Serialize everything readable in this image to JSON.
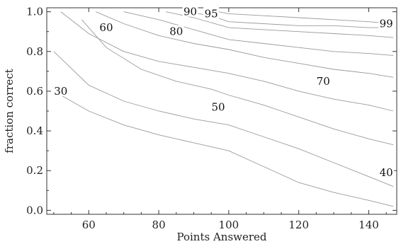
{
  "chart_data": {
    "type": "contour",
    "title": "",
    "xlabel": "Points Answered",
    "ylabel": "fraction correct",
    "xlim": [
      48,
      148
    ],
    "ylim": [
      -0.02,
      1.02
    ],
    "xticks": [
      60,
      80,
      100,
      120,
      140
    ],
    "yticks": [
      0.0,
      0.2,
      0.4,
      0.6,
      0.8,
      1.0
    ],
    "xtick_labels": [
      "60",
      "80",
      "100",
      "120",
      "140"
    ],
    "ytick_labels": [
      "0.0",
      "0.2",
      "0.4",
      "0.6",
      "0.8",
      "1.0"
    ],
    "grid": false,
    "contours": [
      {
        "level": "30",
        "points": [
          [
            50,
            0.6
          ],
          [
            60,
            0.5
          ],
          [
            70,
            0.43
          ],
          [
            80,
            0.38
          ],
          [
            90,
            0.34
          ],
          [
            100,
            0.3
          ],
          [
            110,
            0.22
          ],
          [
            120,
            0.14
          ],
          [
            130,
            0.09
          ],
          [
            140,
            0.05
          ],
          [
            147,
            0.02
          ]
        ]
      },
      {
        "level": "40",
        "points": [
          [
            50,
            0.8
          ],
          [
            60,
            0.63
          ],
          [
            70,
            0.55
          ],
          [
            80,
            0.5
          ],
          [
            90,
            0.46
          ],
          [
            100,
            0.43
          ],
          [
            110,
            0.37
          ],
          [
            120,
            0.31
          ],
          [
            130,
            0.24
          ],
          [
            140,
            0.17
          ],
          [
            147,
            0.12
          ]
        ]
      },
      {
        "level": "50",
        "points": [
          [
            58,
            0.96
          ],
          [
            65,
            0.82
          ],
          [
            75,
            0.71
          ],
          [
            85,
            0.65
          ],
          [
            95,
            0.61
          ],
          [
            100,
            0.58
          ],
          [
            110,
            0.53
          ],
          [
            120,
            0.47
          ],
          [
            130,
            0.41
          ],
          [
            140,
            0.36
          ],
          [
            147,
            0.33
          ]
        ]
      },
      {
        "level": "60",
        "points": [
          [
            52,
            1.0
          ],
          [
            60,
            0.89
          ],
          [
            70,
            0.8
          ],
          [
            80,
            0.75
          ],
          [
            90,
            0.72
          ],
          [
            100,
            0.69
          ],
          [
            110,
            0.65
          ],
          [
            120,
            0.6
          ],
          [
            130,
            0.56
          ],
          [
            140,
            0.53
          ],
          [
            147,
            0.5
          ]
        ]
      },
      {
        "level": "70",
        "points": [
          [
            62,
            1.0
          ],
          [
            70,
            0.94
          ],
          [
            80,
            0.88
          ],
          [
            90,
            0.84
          ],
          [
            100,
            0.81
          ],
          [
            110,
            0.77
          ],
          [
            120,
            0.74
          ],
          [
            130,
            0.71
          ],
          [
            140,
            0.69
          ],
          [
            147,
            0.67
          ]
        ]
      },
      {
        "level": "80",
        "points": [
          [
            70,
            1.0
          ],
          [
            80,
            0.96
          ],
          [
            90,
            0.91
          ],
          [
            100,
            0.86
          ],
          [
            110,
            0.84
          ],
          [
            120,
            0.82
          ],
          [
            130,
            0.8
          ],
          [
            140,
            0.79
          ],
          [
            147,
            0.78
          ]
        ]
      },
      {
        "level": "90",
        "points": [
          [
            82,
            1.0
          ],
          [
            90,
            0.97
          ],
          [
            100,
            0.92
          ],
          [
            110,
            0.91
          ],
          [
            120,
            0.9
          ],
          [
            130,
            0.89
          ],
          [
            140,
            0.88
          ],
          [
            147,
            0.87
          ]
        ]
      },
      {
        "level": "95",
        "points": [
          [
            88,
            1.0
          ],
          [
            95,
            0.98
          ],
          [
            100,
            0.95
          ],
          [
            110,
            0.94
          ],
          [
            120,
            0.93
          ],
          [
            130,
            0.93
          ],
          [
            140,
            0.92
          ],
          [
            147,
            0.92
          ]
        ]
      },
      {
        "level": "99",
        "points": [
          [
            97,
            1.0
          ],
          [
            100,
            0.99
          ],
          [
            110,
            0.98
          ],
          [
            120,
            0.97
          ],
          [
            130,
            0.96
          ],
          [
            140,
            0.95
          ],
          [
            147,
            0.94
          ]
        ]
      }
    ],
    "contour_labels": [
      {
        "text": "30",
        "x": 52,
        "y": 0.6
      },
      {
        "text": "60",
        "x": 65,
        "y": 0.92
      },
      {
        "text": "90",
        "x": 89,
        "y": 1.0
      },
      {
        "text": "95",
        "x": 95,
        "y": 0.99
      },
      {
        "text": "80",
        "x": 85,
        "y": 0.9
      },
      {
        "text": "99",
        "x": 145,
        "y": 0.94
      },
      {
        "text": "70",
        "x": 127,
        "y": 0.65
      },
      {
        "text": "50",
        "x": 97,
        "y": 0.52
      },
      {
        "text": "40",
        "x": 145,
        "y": 0.19
      }
    ]
  }
}
